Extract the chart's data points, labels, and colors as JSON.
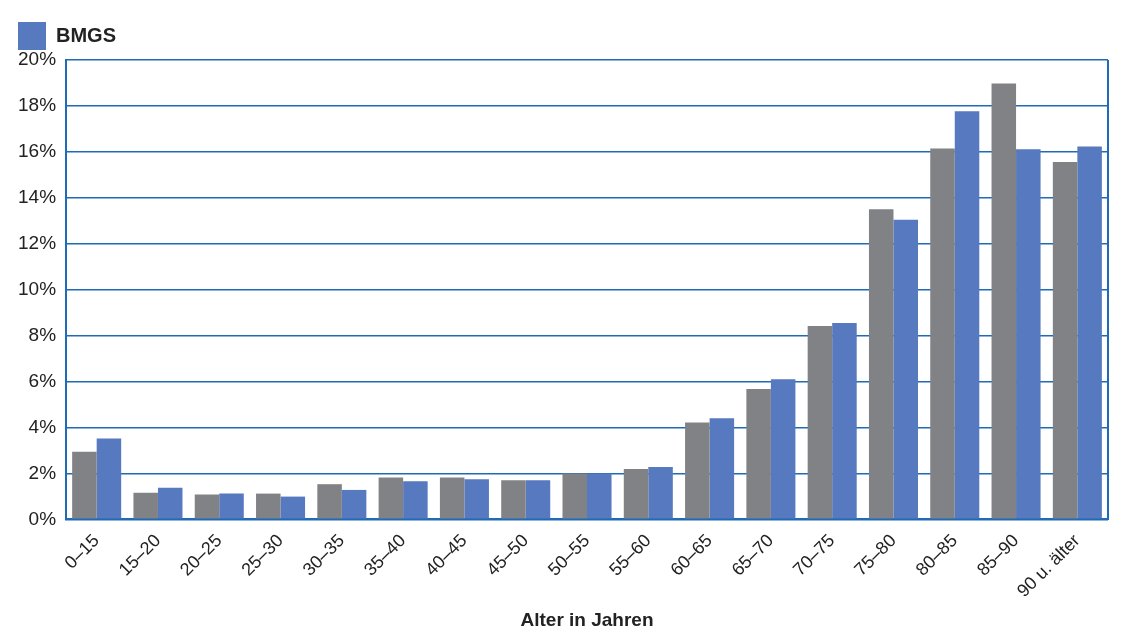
{
  "chart_data": {
    "type": "bar",
    "xlabel": "Alter in Jahren",
    "categories": [
      "0–15",
      "15–20",
      "20–25",
      "25–30",
      "30–35",
      "35–40",
      "40–45",
      "45–50",
      "50–55",
      "55–60",
      "60–65",
      "65–70",
      "70–75",
      "75–80",
      "80–85",
      "85–90",
      "90 u. älter"
    ],
    "series": [
      {
        "color": "#818286",
        "values": [
          2.94,
          1.16,
          1.08,
          1.12,
          1.53,
          1.82,
          1.82,
          1.7,
          2.0,
          2.19,
          4.22,
          5.68,
          8.42,
          13.5,
          16.15,
          18.98,
          15.56
        ]
      },
      {
        "name": "BMGS",
        "color": "#5679bf",
        "values": [
          3.52,
          1.37,
          1.12,
          0.99,
          1.28,
          1.66,
          1.74,
          1.7,
          2.0,
          2.28,
          4.4,
          6.1,
          8.55,
          13.04,
          17.77,
          16.11,
          16.23
        ]
      }
    ],
    "ylim": [
      0,
      20
    ],
    "yticks": [
      {
        "value": 0,
        "label": "0%"
      },
      {
        "value": 2,
        "label": "2%"
      },
      {
        "value": 4,
        "label": "4%"
      },
      {
        "value": 6,
        "label": "6%"
      },
      {
        "value": 8,
        "label": "8%"
      },
      {
        "value": 10,
        "label": "10%"
      },
      {
        "value": 12,
        "label": "12%"
      },
      {
        "value": 14,
        "label": "14%"
      },
      {
        "value": 16,
        "label": "16%"
      },
      {
        "value": 18,
        "label": "18%"
      },
      {
        "value": 20,
        "label": "20%"
      }
    ],
    "grid": "y",
    "legend": "top left"
  }
}
